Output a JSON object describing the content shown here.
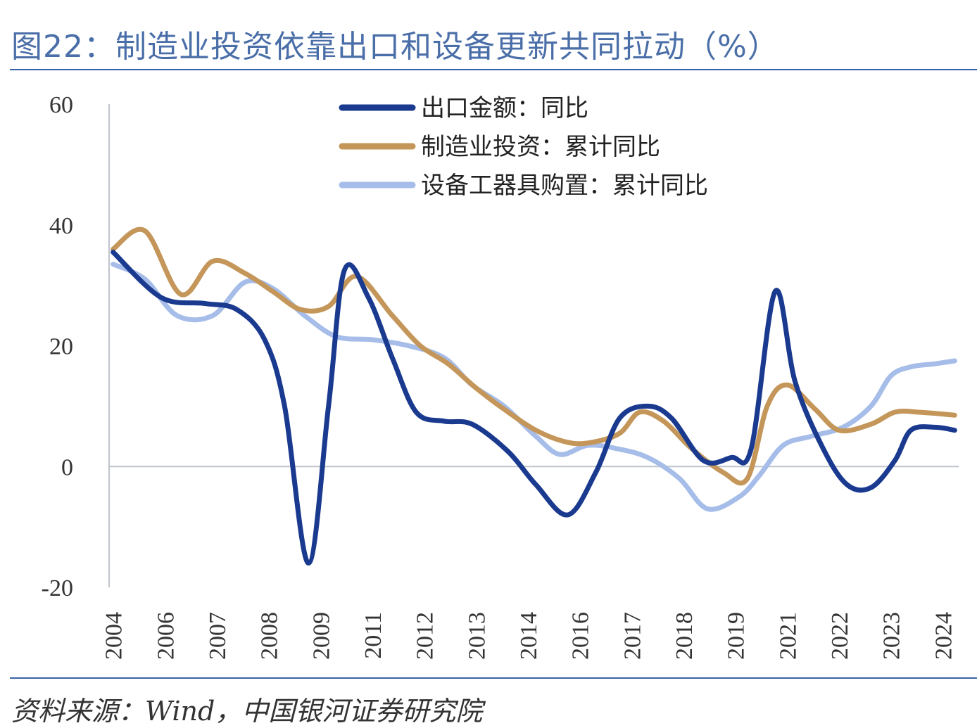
{
  "title": "图22：制造业投资依靠出口和设备更新共同拉动（%）",
  "source": "资料来源：Wind，中国银河证券研究院",
  "chart_data": {
    "type": "line",
    "ylim": [
      -20,
      60
    ],
    "yticks": [
      "60",
      "40",
      "20",
      "0",
      "-20"
    ],
    "ytick_values": [
      60,
      40,
      20,
      0,
      -20
    ],
    "xlim": [
      2003.9,
      2025.2
    ],
    "xtick_labels": [
      "2004",
      "2006",
      "2007",
      "2008",
      "2009",
      "2011",
      "2012",
      "2013",
      "2014",
      "2016",
      "2017",
      "2018",
      "2019",
      "2021",
      "2022",
      "2023",
      "2024"
    ],
    "xtick_values": [
      2004.0,
      2005.3,
      2006.6,
      2007.9,
      2009.2,
      2010.5,
      2011.8,
      2013.1,
      2014.4,
      2015.7,
      2017.0,
      2018.3,
      2019.6,
      2020.9,
      2022.2,
      2023.5,
      2024.8
    ],
    "grid": false,
    "legend_position": "top-center",
    "series": [
      {
        "name": "出口金额：同比",
        "color": "#1a3a8f",
        "x": [
          2004.0,
          2005.2,
          2006.3,
          2007.1,
          2007.8,
          2008.3,
          2008.9,
          2009.4,
          2009.8,
          2010.4,
          2011.0,
          2011.6,
          2012.3,
          2013.0,
          2013.9,
          2014.6,
          2015.4,
          2016.1,
          2016.7,
          2017.4,
          2018.0,
          2018.8,
          2019.5,
          2020.0,
          2020.6,
          2021.1,
          2021.8,
          2022.4,
          2023.0,
          2023.6,
          2024.0,
          2024.6,
          2025.1
        ],
        "y": [
          35.5,
          28.0,
          27.0,
          26.0,
          21.0,
          10.0,
          -16.0,
          10.0,
          32.5,
          28.0,
          18.0,
          9.0,
          7.5,
          7.0,
          2.5,
          -3.0,
          -8.0,
          -1.0,
          8.0,
          10.0,
          8.0,
          1.0,
          1.5,
          3.0,
          29.0,
          14.0,
          3.0,
          -3.0,
          -3.5,
          1.0,
          6.0,
          6.5,
          6.0
        ]
      },
      {
        "name": "制造业投资：累计同比",
        "color": "#c4965a",
        "x": [
          2004.0,
          2004.8,
          2005.7,
          2006.5,
          2007.3,
          2008.0,
          2008.7,
          2009.4,
          2010.1,
          2011.0,
          2011.7,
          2012.4,
          2013.1,
          2013.8,
          2014.6,
          2015.4,
          2016.0,
          2016.7,
          2017.2,
          2017.8,
          2018.5,
          2019.3,
          2019.9,
          2020.4,
          2020.9,
          2021.6,
          2022.2,
          2023.0,
          2023.6,
          2024.2,
          2025.1
        ],
        "y": [
          36.0,
          39.0,
          28.5,
          34.0,
          32.0,
          29.0,
          26.0,
          26.5,
          31.5,
          25.0,
          20.0,
          17.0,
          13.0,
          9.5,
          6.0,
          4.0,
          4.0,
          5.5,
          9.0,
          7.5,
          3.0,
          -1.0,
          -2.0,
          10.0,
          13.5,
          9.5,
          6.0,
          7.0,
          9.0,
          9.0,
          8.5
        ]
      },
      {
        "name": "设备工器具购置：累计同比",
        "color": "#a5bde8",
        "x": [
          2004.0,
          2004.8,
          2005.6,
          2006.5,
          2007.3,
          2008.0,
          2008.8,
          2009.6,
          2010.5,
          2011.4,
          2012.3,
          2013.0,
          2013.8,
          2014.6,
          2015.2,
          2015.9,
          2016.6,
          2017.4,
          2018.2,
          2018.9,
          2019.7,
          2020.2,
          2020.8,
          2021.5,
          2022.3,
          2023.0,
          2023.5,
          2024.0,
          2024.6,
          2025.1
        ],
        "y": [
          33.5,
          31.0,
          25.0,
          25.0,
          30.5,
          29.5,
          25.0,
          21.5,
          21.0,
          20.0,
          18.0,
          13.5,
          10.0,
          5.0,
          2.0,
          3.5,
          3.0,
          1.5,
          -2.0,
          -7.0,
          -5.0,
          -1.5,
          3.5,
          5.0,
          6.5,
          10.0,
          15.0,
          16.5,
          17.0,
          17.5
        ]
      }
    ]
  }
}
